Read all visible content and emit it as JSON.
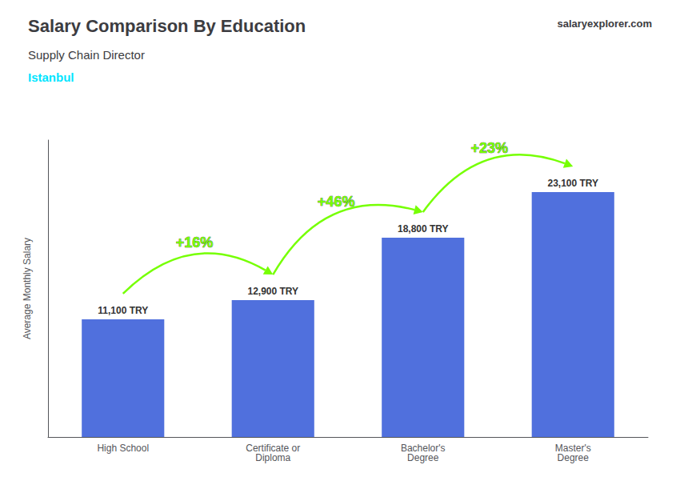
{
  "chart_data": {
    "type": "bar",
    "title": "Salary Comparison By Education",
    "subtitle": "Supply Chain Director",
    "categories": [
      "High School",
      "Certificate or\nDiploma",
      "Bachelor's\nDegree",
      "Master's\nDegree"
    ],
    "values": [
      11100,
      12900,
      18800,
      23100
    ],
    "value_labels": [
      "11,100 TRY",
      "12,900 TRY",
      "18,800 TRY",
      "23,100 TRY"
    ],
    "data_labels": true,
    "ylabel": "Average Monthly Salary",
    "ylim": [
      0,
      28000
    ],
    "tick_labels": "x",
    "grid": false,
    "annotations": [
      {
        "text": "Istanbul",
        "color": "#00e5ff"
      },
      {
        "text": "salaryexplorer.com"
      },
      {
        "text": "+16%",
        "from": "High School",
        "to": "Certificate or\nDiploma",
        "color": "#76ff03"
      },
      {
        "text": "+46%",
        "from": "Certificate or\nDiploma",
        "to": "Bachelor's\nDegree",
        "color": "#76ff03"
      },
      {
        "text": "+23%",
        "from": "Bachelor's\nDegree",
        "to": "Master's\nDegree",
        "color": "#76ff03"
      }
    ]
  }
}
